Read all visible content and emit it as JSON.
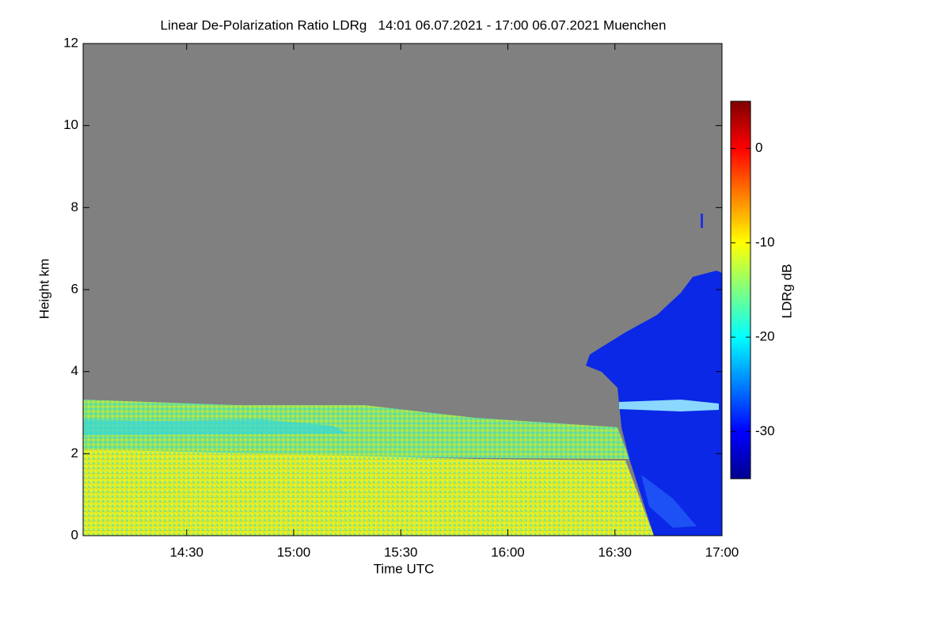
{
  "chart_data": {
    "type": "heatmap",
    "title": "Linear De-Polarization Ratio LDRg   14:01 06.07.2021 - 17:00 06.07.2021 Muenchen",
    "x_label": "Time UTC",
    "y_label": "Height km",
    "xlim": [
      "14:01",
      "17:00"
    ],
    "xticks": [
      "14:30",
      "15:00",
      "15:30",
      "16:00",
      "16:30",
      "17:00"
    ],
    "ylim": [
      0,
      12
    ],
    "yticks": [
      0,
      2,
      4,
      6,
      8,
      10,
      12
    ],
    "colorbar": {
      "label": "LDRg dB",
      "clim": [
        -35,
        5
      ],
      "ticks": [
        0,
        -10,
        -20,
        -30
      ],
      "colormap": [
        "#00008f",
        "#0000ff",
        "#0080ff",
        "#00ffff",
        "#80ff80",
        "#ffff00",
        "#ff8000",
        "#ff0000",
        "#800000"
      ]
    }
  }
}
